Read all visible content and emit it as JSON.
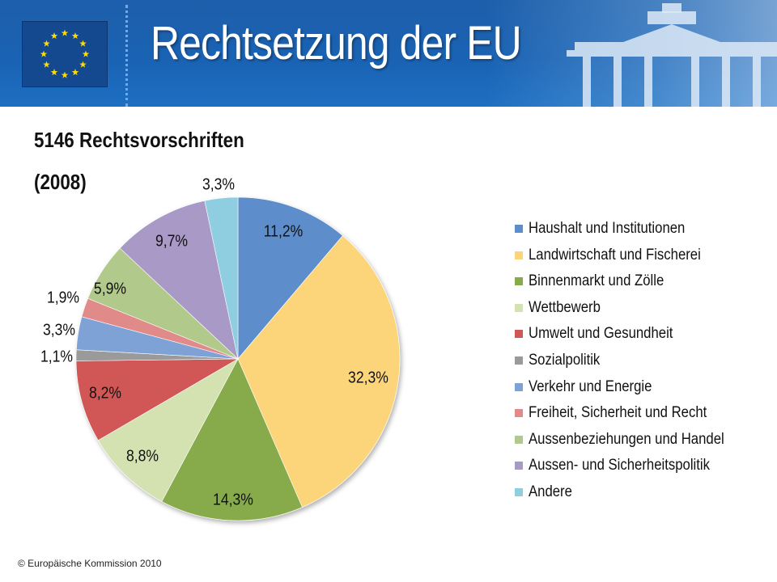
{
  "header": {
    "title": "Rechtsetzung der EU"
  },
  "subtitle": {
    "line1": "5146 Rechtsvorschriften",
    "line2": "(2008)"
  },
  "footer": {
    "copyright": "© Europäische Kommission 2010"
  },
  "colors": {
    "header_bg": "#1a62b3",
    "flag_blue": "#14488f",
    "flag_star": "#ffdd00"
  },
  "chart_data": {
    "type": "pie",
    "legend_position": "right",
    "start_angle_deg": 0,
    "direction": "clockwise",
    "slices": [
      {
        "label": "Haushalt und Institutionen",
        "value": 11.2,
        "display": "11,2%",
        "color": "#5d8ecb"
      },
      {
        "label": "Landwirtschaft und Fischerei",
        "value": 32.3,
        "display": "32,3%",
        "color": "#fcd57a"
      },
      {
        "label": "Binnenmarkt und Zölle",
        "value": 14.3,
        "display": "14,3%",
        "color": "#87ab4c"
      },
      {
        "label": "Wettbewerb",
        "value": 8.8,
        "display": "8,8%",
        "color": "#d4e1b1"
      },
      {
        "label": "Umwelt und Gesundheit",
        "value": 8.2,
        "display": "8,2%",
        "color": "#d15757"
      },
      {
        "label": "Sozialpolitik",
        "value": 1.1,
        "display": "1,1%",
        "color": "#9a9a9a"
      },
      {
        "label": "Verkehr und Energie",
        "value": 3.3,
        "display": "3,3%",
        "color": "#7fa2d6"
      },
      {
        "label": "Freiheit, Sicherheit und Recht",
        "value": 1.9,
        "display": "1,9%",
        "color": "#e08a8a"
      },
      {
        "label": "Aussenbeziehungen und Handel",
        "value": 5.9,
        "display": "5,9%",
        "color": "#b1c98a"
      },
      {
        "label": "Aussen- und Sicherheitspolitik",
        "value": 9.7,
        "display": "9,7%",
        "color": "#a899c7"
      },
      {
        "label": "Andere",
        "value": 3.3,
        "display": "3,3%",
        "color": "#8fcde0"
      }
    ]
  }
}
